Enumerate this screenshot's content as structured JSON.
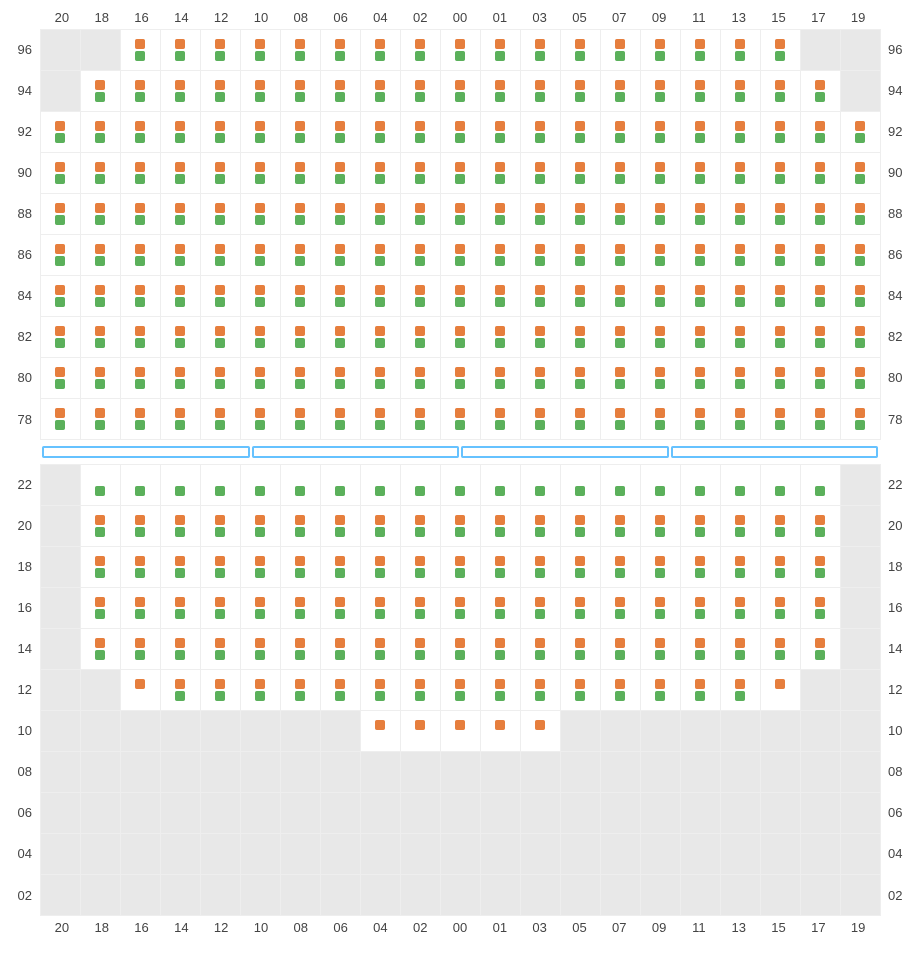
{
  "columns": [
    "20",
    "18",
    "16",
    "14",
    "12",
    "10",
    "08",
    "06",
    "04",
    "02",
    "00",
    "01",
    "03",
    "05",
    "07",
    "09",
    "11",
    "13",
    "15",
    "17",
    "19"
  ],
  "upper": {
    "rows": [
      "96",
      "94",
      "92",
      "90",
      "88",
      "86",
      "84",
      "82",
      "80",
      "78"
    ],
    "cells": [
      [
        "empty",
        "empty",
        "og",
        "og",
        "og",
        "og",
        "og",
        "og",
        "og",
        "og",
        "og",
        "og",
        "og",
        "og",
        "og",
        "og",
        "og",
        "og",
        "og",
        "empty",
        "empty"
      ],
      [
        "empty",
        "og",
        "og",
        "og",
        "og",
        "og",
        "og",
        "og",
        "og",
        "og",
        "og",
        "og",
        "og",
        "og",
        "og",
        "og",
        "og",
        "og",
        "og",
        "og",
        "empty"
      ],
      [
        "og",
        "og",
        "og",
        "og",
        "og",
        "og",
        "og",
        "og",
        "og",
        "og",
        "og",
        "og",
        "og",
        "og",
        "og",
        "og",
        "og",
        "og",
        "og",
        "og",
        "og"
      ],
      [
        "og",
        "og",
        "og",
        "og",
        "og",
        "og",
        "og",
        "og",
        "og",
        "og",
        "og",
        "og",
        "og",
        "og",
        "og",
        "og",
        "og",
        "og",
        "og",
        "og",
        "og"
      ],
      [
        "og",
        "og",
        "og",
        "og",
        "og",
        "og",
        "og",
        "og",
        "og",
        "og",
        "og",
        "og",
        "og",
        "og",
        "og",
        "og",
        "og",
        "og",
        "og",
        "og",
        "og"
      ],
      [
        "og",
        "og",
        "og",
        "og",
        "og",
        "og",
        "og",
        "og",
        "og",
        "og",
        "og",
        "og",
        "og",
        "og",
        "og",
        "og",
        "og",
        "og",
        "og",
        "og",
        "og"
      ],
      [
        "og",
        "og",
        "og",
        "og",
        "og",
        "og",
        "og",
        "og",
        "og",
        "og",
        "og",
        "og",
        "og",
        "og",
        "og",
        "og",
        "og",
        "og",
        "og",
        "og",
        "og"
      ],
      [
        "og",
        "og",
        "og",
        "og",
        "og",
        "og",
        "og",
        "og",
        "og",
        "og",
        "og",
        "og",
        "og",
        "og",
        "og",
        "og",
        "og",
        "og",
        "og",
        "og",
        "og"
      ],
      [
        "og",
        "og",
        "og",
        "og",
        "og",
        "og",
        "og",
        "og",
        "og",
        "og",
        "og",
        "og",
        "og",
        "og",
        "og",
        "og",
        "og",
        "og",
        "og",
        "og",
        "og"
      ],
      [
        "og",
        "og",
        "og",
        "og",
        "og",
        "og",
        "og",
        "og",
        "og",
        "og",
        "og",
        "og",
        "og",
        "og",
        "og",
        "og",
        "og",
        "og",
        "og",
        "og",
        "og"
      ]
    ]
  },
  "divider_segments": 4,
  "lower": {
    "rows": [
      "22",
      "20",
      "18",
      "16",
      "14",
      "12",
      "10",
      "08",
      "06",
      "04",
      "02"
    ],
    "cells": [
      [
        "empty",
        "green-only",
        "green-only",
        "green-only",
        "green-only",
        "green-only",
        "green-only",
        "green-only",
        "green-only",
        "green-only",
        "green-only",
        "green-only",
        "green-only",
        "green-only",
        "green-only",
        "green-only",
        "green-only",
        "green-only",
        "green-only",
        "green-only",
        "empty"
      ],
      [
        "empty",
        "og",
        "og",
        "og",
        "og",
        "og",
        "og",
        "og",
        "og",
        "og",
        "og",
        "og",
        "og",
        "og",
        "og",
        "og",
        "og",
        "og",
        "og",
        "og",
        "empty"
      ],
      [
        "empty",
        "og",
        "og",
        "og",
        "og",
        "og",
        "og",
        "og",
        "og",
        "og",
        "og",
        "og",
        "og",
        "og",
        "og",
        "og",
        "og",
        "og",
        "og",
        "og",
        "empty"
      ],
      [
        "empty",
        "og",
        "og",
        "og",
        "og",
        "og",
        "og",
        "og",
        "og",
        "og",
        "og",
        "og",
        "og",
        "og",
        "og",
        "og",
        "og",
        "og",
        "og",
        "og",
        "empty"
      ],
      [
        "empty",
        "og",
        "og",
        "og",
        "og",
        "og",
        "og",
        "og",
        "og",
        "og",
        "og",
        "og",
        "og",
        "og",
        "og",
        "og",
        "og",
        "og",
        "og",
        "og",
        "empty"
      ],
      [
        "empty",
        "empty",
        "orange-only",
        "og",
        "og",
        "og",
        "og",
        "og",
        "og",
        "og",
        "og",
        "og",
        "og",
        "og",
        "og",
        "og",
        "og",
        "og",
        "orange-only",
        "empty",
        "empty"
      ],
      [
        "empty",
        "empty",
        "empty",
        "empty",
        "empty",
        "empty",
        "empty",
        "empty",
        "orange-only",
        "orange-only",
        "orange-only",
        "orange-only",
        "orange-only",
        "empty",
        "empty",
        "empty",
        "empty",
        "empty",
        "empty",
        "empty",
        "empty"
      ],
      [
        "empty",
        "empty",
        "empty",
        "empty",
        "empty",
        "empty",
        "empty",
        "empty",
        "empty",
        "empty",
        "empty",
        "empty",
        "empty",
        "empty",
        "empty",
        "empty",
        "empty",
        "empty",
        "empty",
        "empty",
        "empty"
      ],
      [
        "empty",
        "empty",
        "empty",
        "empty",
        "empty",
        "empty",
        "empty",
        "empty",
        "empty",
        "empty",
        "empty",
        "empty",
        "empty",
        "empty",
        "empty",
        "empty",
        "empty",
        "empty",
        "empty",
        "empty",
        "empty"
      ],
      [
        "empty",
        "empty",
        "empty",
        "empty",
        "empty",
        "empty",
        "empty",
        "empty",
        "empty",
        "empty",
        "empty",
        "empty",
        "empty",
        "empty",
        "empty",
        "empty",
        "empty",
        "empty",
        "empty",
        "empty",
        "empty"
      ],
      [
        "empty",
        "empty",
        "empty",
        "empty",
        "empty",
        "empty",
        "empty",
        "empty",
        "empty",
        "empty",
        "empty",
        "empty",
        "empty",
        "empty",
        "empty",
        "empty",
        "empty",
        "empty",
        "empty",
        "empty",
        "empty"
      ]
    ]
  },
  "colors": {
    "orange": "#e67e3d",
    "green": "#5bb05b",
    "empty_bg": "#e8e8e8",
    "grid_line": "#eeeeee",
    "divider_border": "#66c2ff",
    "text": "#444444"
  }
}
